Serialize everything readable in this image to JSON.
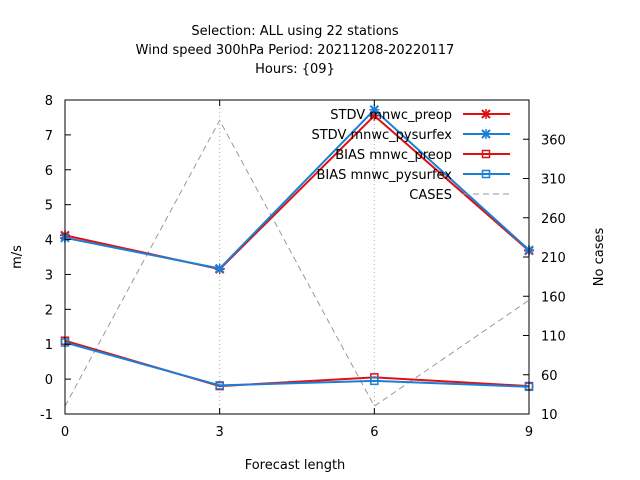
{
  "chart_data": {
    "type": "line",
    "title_lines": [
      "Selection: ALL using    22 stations",
      "Wind speed 300hPa   Period: 20211208-20220117",
      "Hours: {09}"
    ],
    "xlabel": "Forecast length",
    "ylabel": "m/s",
    "y2label": "No cases",
    "x": [
      0,
      3,
      6,
      9
    ],
    "xlim": [
      0,
      9
    ],
    "ylim": [
      -1,
      8
    ],
    "y2lim": [
      10,
      410
    ],
    "x_ticks": [
      0,
      3,
      6,
      9
    ],
    "y_ticks": [
      -1,
      0,
      1,
      2,
      3,
      4,
      5,
      6,
      7,
      8
    ],
    "y2_ticks": [
      10,
      60,
      110,
      160,
      210,
      260,
      310,
      360
    ],
    "grid": true,
    "legend_position": "top-right",
    "series": [
      {
        "name": "STDV mnwc_preop",
        "axis": "y",
        "color": "#e01010",
        "marker": "x",
        "values": [
          4.12,
          3.15,
          7.55,
          3.68
        ]
      },
      {
        "name": "STDV mnwc_pysurfex",
        "axis": "y",
        "color": "#1a7fd6",
        "marker": "x",
        "values": [
          4.05,
          3.17,
          7.72,
          3.7
        ]
      },
      {
        "name": "BIAS mnwc_preop",
        "axis": "y",
        "color": "#e01010",
        "marker": "square",
        "values": [
          1.1,
          -0.2,
          0.05,
          -0.2
        ]
      },
      {
        "name": "BIAS mnwc_pysurfex",
        "axis": "y",
        "color": "#1a7fd6",
        "marker": "square",
        "values": [
          1.05,
          -0.18,
          -0.05,
          -0.22
        ]
      },
      {
        "name": "CASES",
        "axis": "y2",
        "color": "#999999",
        "marker": "none",
        "dashed": true,
        "values": [
          20,
          384,
          20,
          155
        ]
      }
    ]
  }
}
